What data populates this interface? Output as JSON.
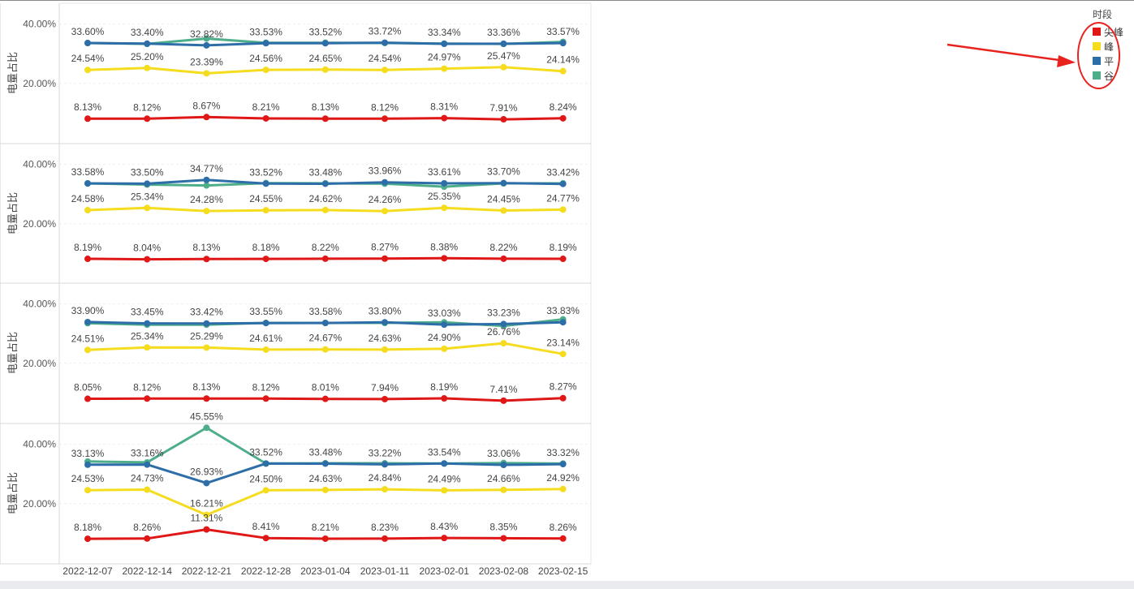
{
  "legend": {
    "title": "时段",
    "items": [
      {
        "label": "尖峰",
        "color": "#e01717"
      },
      {
        "label": "峰",
        "color": "#f5dc1e"
      },
      {
        "label": "平",
        "color": "#2e6ea8"
      },
      {
        "label": "谷",
        "color": "#4fae8a"
      }
    ]
  },
  "chart_data": {
    "type": "line",
    "categories": [
      "2022-12-07",
      "2022-12-14",
      "2022-12-21",
      "2022-12-28",
      "2023-01-04",
      "2023-01-11",
      "2023-02-01",
      "2023-02-08",
      "2023-02-15"
    ],
    "y_tick_labels": [
      "40.00%",
      "20.00%"
    ],
    "y_ticks": [
      40,
      20
    ],
    "ylim": [
      0,
      47
    ],
    "ylabel": "电量占比",
    "grid": true,
    "legend_position": "top-right",
    "panels": [
      {
        "series": [
          {
            "name": "尖峰",
            "color": "#e01717",
            "values": [
              8.13,
              8.12,
              8.67,
              8.21,
              8.13,
              8.12,
              8.31,
              7.91,
              8.24
            ],
            "labels": [
              "8.13%",
              "8.12%",
              "8.67%",
              "8.21%",
              "8.13%",
              "8.12%",
              "8.31%",
              "7.91%",
              "8.24%"
            ]
          },
          {
            "name": "峰",
            "color": "#f5dc1e",
            "values": [
              24.54,
              25.2,
              23.39,
              24.56,
              24.65,
              24.54,
              24.97,
              25.47,
              24.14
            ],
            "labels": [
              "24.54%",
              "25.20%",
              "23.39%",
              "24.56%",
              "24.65%",
              "24.54%",
              "24.97%",
              "25.47%",
              "24.14%"
            ]
          },
          {
            "name": "平",
            "color": "#2e6ea8",
            "values": [
              33.6,
              33.4,
              32.82,
              33.53,
              33.52,
              33.72,
              33.34,
              33.36,
              33.57
            ],
            "labels": [
              "33.60%",
              "33.40%",
              "32.82%",
              "33.53%",
              "33.52%",
              "33.72%",
              "33.34%",
              "33.36%",
              "33.57%"
            ]
          },
          {
            "name": "谷",
            "color": "#4fae8a",
            "values": [
              33.6,
              33.3,
              35.1,
              33.7,
              33.7,
              33.6,
              33.4,
              33.3,
              34.0
            ],
            "labels": []
          }
        ]
      },
      {
        "series": [
          {
            "name": "尖峰",
            "color": "#e01717",
            "values": [
              8.19,
              8.04,
              8.13,
              8.18,
              8.22,
              8.27,
              8.38,
              8.22,
              8.19
            ],
            "labels": [
              "8.19%",
              "8.04%",
              "8.13%",
              "8.18%",
              "8.22%",
              "8.27%",
              "8.38%",
              "8.22%",
              "8.19%"
            ]
          },
          {
            "name": "峰",
            "color": "#f5dc1e",
            "values": [
              24.58,
              25.34,
              24.28,
              24.55,
              24.62,
              24.26,
              25.35,
              24.45,
              24.77
            ],
            "labels": [
              "24.58%",
              "25.34%",
              "24.28%",
              "24.55%",
              "24.62%",
              "24.26%",
              "25.35%",
              "24.45%",
              "24.77%"
            ]
          },
          {
            "name": "平",
            "color": "#2e6ea8",
            "values": [
              33.58,
              33.5,
              34.77,
              33.52,
              33.48,
              33.96,
              33.61,
              33.7,
              33.42
            ],
            "labels": [
              "33.58%",
              "33.50%",
              "34.77%",
              "33.52%",
              "33.48%",
              "33.96%",
              "33.61%",
              "33.70%",
              "33.42%"
            ]
          },
          {
            "name": "谷",
            "color": "#4fae8a",
            "values": [
              33.6,
              33.2,
              32.9,
              33.7,
              33.6,
              33.5,
              32.5,
              33.6,
              33.6
            ],
            "labels": []
          }
        ]
      },
      {
        "series": [
          {
            "name": "尖峰",
            "color": "#e01717",
            "values": [
              8.05,
              8.12,
              8.13,
              8.12,
              8.01,
              7.94,
              8.19,
              7.41,
              8.27
            ],
            "labels": [
              "8.05%",
              "8.12%",
              "8.13%",
              "8.12%",
              "8.01%",
              "7.94%",
              "8.19%",
              "7.41%",
              "8.27%"
            ]
          },
          {
            "name": "峰",
            "color": "#f5dc1e",
            "values": [
              24.51,
              25.34,
              25.29,
              24.61,
              24.67,
              24.63,
              24.9,
              26.76,
              23.14
            ],
            "labels": [
              "24.51%",
              "25.34%",
              "25.29%",
              "24.61%",
              "24.67%",
              "24.63%",
              "24.90%",
              "26.76%",
              "23.14%"
            ]
          },
          {
            "name": "平",
            "color": "#2e6ea8",
            "values": [
              33.9,
              33.45,
              33.42,
              33.55,
              33.58,
              33.8,
              33.03,
              33.23,
              33.83
            ],
            "labels": [
              "33.90%",
              "33.45%",
              "33.42%",
              "33.55%",
              "33.58%",
              "33.80%",
              "33.03%",
              "33.23%",
              "33.83%"
            ]
          },
          {
            "name": "谷",
            "color": "#4fae8a",
            "values": [
              33.5,
              33.0,
              33.0,
              33.6,
              33.6,
              33.6,
              33.8,
              32.6,
              34.8
            ],
            "labels": []
          }
        ]
      },
      {
        "series": [
          {
            "name": "尖峰",
            "color": "#e01717",
            "values": [
              8.18,
              8.26,
              11.31,
              8.41,
              8.21,
              8.23,
              8.43,
              8.35,
              8.26
            ],
            "labels": [
              "8.18%",
              "8.26%",
              "11.31%",
              "8.41%",
              "8.21%",
              "8.23%",
              "8.43%",
              "8.35%",
              "8.26%"
            ]
          },
          {
            "name": "峰",
            "color": "#f5dc1e",
            "values": [
              24.53,
              24.73,
              16.21,
              24.5,
              24.63,
              24.84,
              24.49,
              24.66,
              24.92
            ],
            "labels": [
              "24.53%",
              "24.73%",
              "16.21%",
              "24.50%",
              "24.63%",
              "24.84%",
              "24.49%",
              "24.66%",
              "24.92%"
            ]
          },
          {
            "name": "平",
            "color": "#2e6ea8",
            "values": [
              33.13,
              33.16,
              26.93,
              33.52,
              33.48,
              33.22,
              33.54,
              33.06,
              33.32
            ],
            "labels": [
              "33.13%",
              "33.16%",
              "26.93%",
              "33.52%",
              "33.48%",
              "33.22%",
              "33.54%",
              "33.06%",
              "33.32%"
            ]
          },
          {
            "name": "谷",
            "color": "#4fae8a",
            "values": [
              34.2,
              33.9,
              45.55,
              33.5,
              33.6,
              33.6,
              33.5,
              33.7,
              33.5
            ],
            "labels": [
              "",
              "",
              "45.55%",
              "",
              "",
              "",
              "",
              "",
              ""
            ]
          }
        ]
      }
    ]
  }
}
